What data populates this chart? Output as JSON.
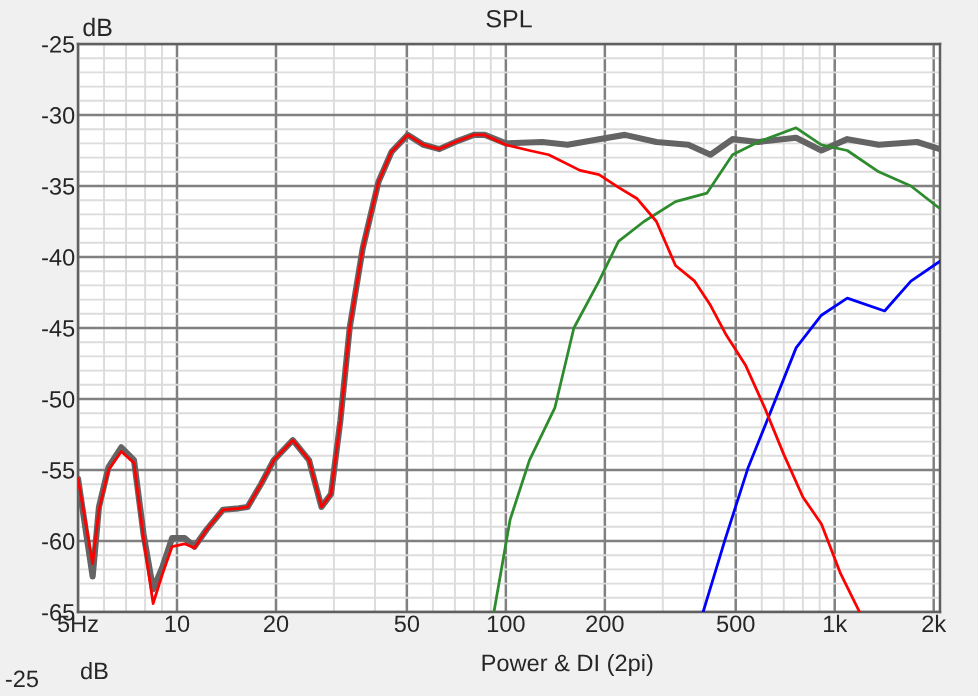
{
  "chart_data": {
    "type": "line",
    "title": "SPL",
    "ylabel": "dB",
    "log": "x",
    "grid": true,
    "line_style": "solid",
    "xlim": [
      5,
      2090
    ],
    "ylim": [
      -65,
      -25
    ],
    "xticks": [
      {
        "value": 5,
        "label": "5Hz"
      },
      10,
      20,
      50,
      100,
      200,
      500,
      {
        "value": 1000,
        "label": "1k"
      },
      {
        "value": 2000,
        "label": "2k"
      }
    ],
    "yticks": [
      -65,
      -60,
      -55,
      -50,
      -45,
      -40,
      -35,
      -30,
      -25
    ],
    "annotations": [
      "Power & DI (2pi)",
      "-25",
      "dB"
    ],
    "series": [
      {
        "color": "#646464",
        "x": [
          5,
          5.54,
          5.79,
          6.19,
          6.77,
          7.4,
          7.91,
          8.46,
          9.04,
          9.66,
          10.55,
          11.3,
          12.3,
          13.8,
          15.4,
          16.4,
          18.0,
          19.7,
          22.5,
          25.2,
          27.5,
          29.4,
          31.4,
          33.5,
          36.7,
          41.0,
          44.9,
          50.3,
          56.2,
          62.8,
          70.2,
          80,
          86.3,
          100,
          129,
          154,
          192,
          230,
          287,
          359,
          419,
          489,
          585,
          763,
          911,
          1092,
          1361,
          1781,
          2090
        ],
        "values": [
          -55.6,
          -62.5,
          -57.6,
          -54.8,
          -53.4,
          -54.3,
          -59.5,
          -63.4,
          -61.8,
          -59.8,
          -59.8,
          -60.4,
          -59.2,
          -57.8,
          -57.7,
          -57.6,
          -56.0,
          -54.3,
          -52.9,
          -54.3,
          -57.6,
          -56.7,
          -51.5,
          -45.0,
          -39.4,
          -34.7,
          -32.6,
          -31.4,
          -32.1,
          -32.4,
          -31.9,
          -31.4,
          -31.4,
          -32.0,
          -31.9,
          -32.1,
          -31.7,
          -31.4,
          -31.9,
          -32.1,
          -32.8,
          -31.7,
          -31.9,
          -31.6,
          -32.5,
          -31.7,
          -32.1,
          -31.9,
          -32.4
        ]
      },
      {
        "color": "#ff0000",
        "x": [
          5,
          5.54,
          5.79,
          6.19,
          6.77,
          7.4,
          7.91,
          8.46,
          9.04,
          9.66,
          10.55,
          11.3,
          12.3,
          13.8,
          15.4,
          16.4,
          18.0,
          19.7,
          22.5,
          25.2,
          27.5,
          29.4,
          31.4,
          33.5,
          36.7,
          41.0,
          44.9,
          50.3,
          56.2,
          62.8,
          70.2,
          80,
          86,
          100,
          118,
          135,
          168,
          192,
          220,
          251,
          287,
          328,
          375,
          419,
          468,
          535,
          612,
          700,
          800,
          911,
          1042,
          1190
        ],
        "values": [
          -55.6,
          -61.6,
          -57.8,
          -55.0,
          -53.7,
          -54.5,
          -59.8,
          -64.4,
          -62.3,
          -60.4,
          -60.2,
          -60.5,
          -59.2,
          -57.8,
          -57.7,
          -57.6,
          -56.0,
          -54.3,
          -52.9,
          -54.3,
          -57.6,
          -56.7,
          -51.5,
          -45.0,
          -39.4,
          -34.7,
          -32.6,
          -31.4,
          -32.1,
          -32.4,
          -31.9,
          -31.4,
          -31.4,
          -32.1,
          -32.5,
          -32.8,
          -33.9,
          -34.2,
          -35.1,
          -35.9,
          -37.5,
          -40.6,
          -41.7,
          -43.4,
          -45.5,
          -47.6,
          -50.6,
          -53.9,
          -56.9,
          -58.8,
          -62.3,
          -65.0
        ]
      },
      {
        "color": "#2e8b2e",
        "x": [
          92,
          103,
          118,
          141,
          161,
          192,
          220,
          263,
          328,
          409,
          489,
          585,
          763,
          911,
          1092,
          1361,
          1705,
          2090
        ],
        "values": [
          -65,
          -58.5,
          -54.3,
          -50.6,
          -45.0,
          -41.7,
          -38.9,
          -37.5,
          -36.1,
          -35.5,
          -32.8,
          -31.9,
          -30.9,
          -32.1,
          -32.5,
          -34.0,
          -35.0,
          -36.6
        ]
      },
      {
        "color": "#0000ff",
        "x": [
          398,
          464,
          546,
          641,
          763,
          911,
          1092,
          1418,
          1705,
          2090
        ],
        "values": [
          -65,
          -59.9,
          -54.8,
          -50.8,
          -46.4,
          -44.1,
          -42.9,
          -43.8,
          -41.7,
          -40.3
        ]
      }
    ]
  }
}
